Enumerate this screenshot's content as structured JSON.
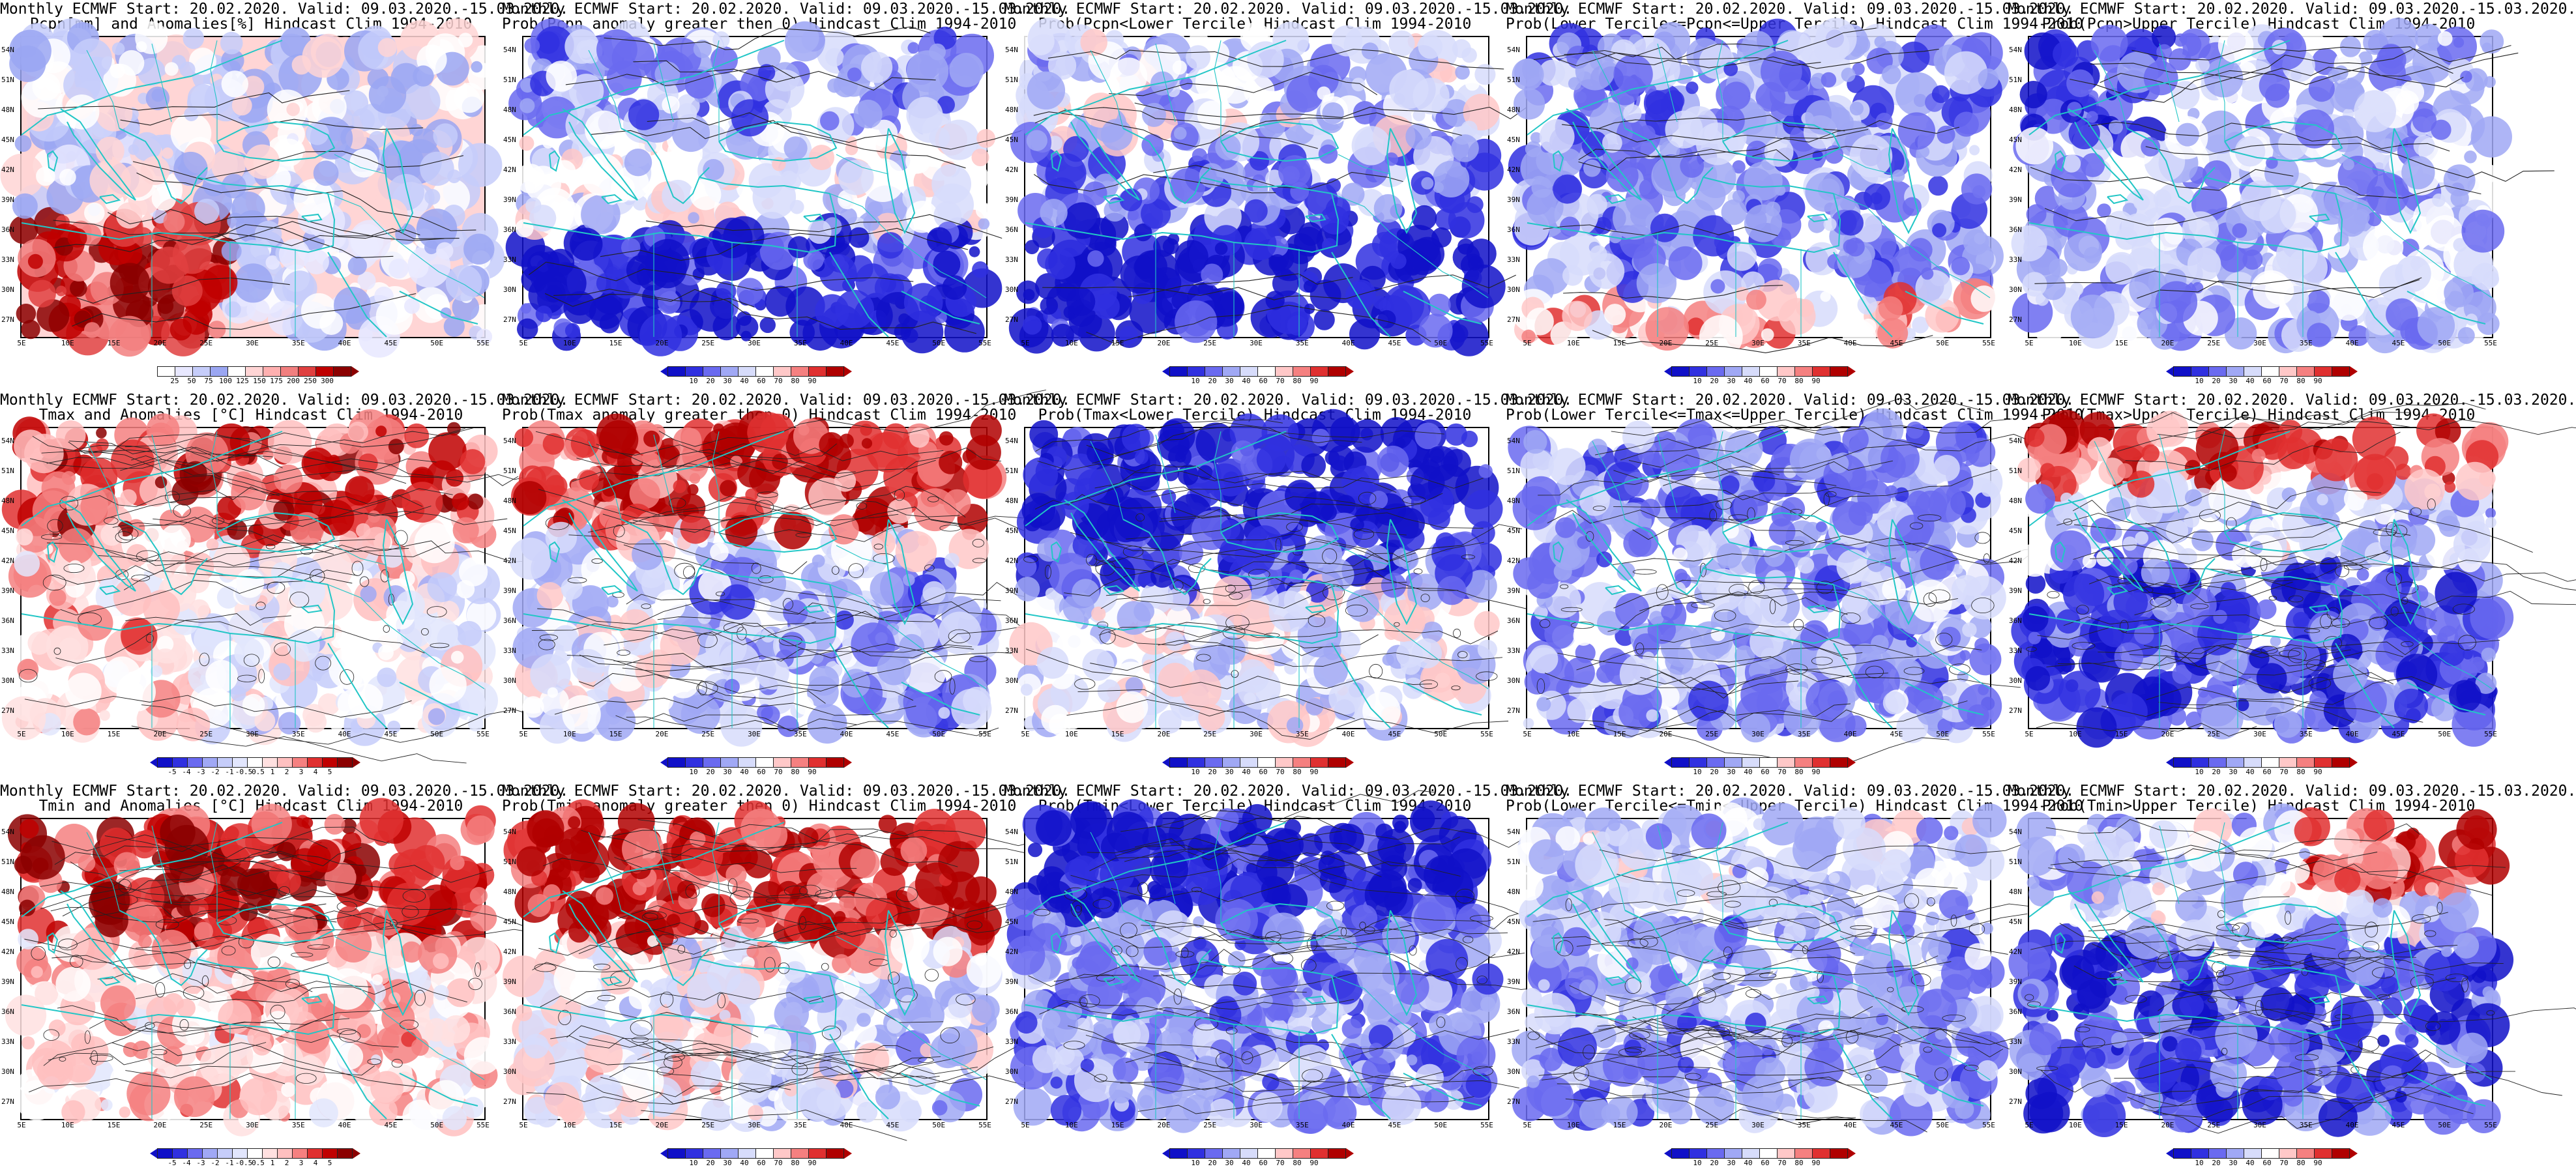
{
  "panels": [
    {
      "id": "pcpn-anom",
      "t1": "Monthly ECMWF Start: 20.02.2020. Valid: 09.03.2020.-15.03.2020.",
      "t2": "Pcpn[mm] and Anomalies[%] Hindcast Clim 1994-2010",
      "colorbar": {
        "labels": [
          "25",
          "50",
          "75",
          "100",
          "125",
          "150",
          "175",
          "200",
          "250",
          "300"
        ],
        "colors": [
          "#ffffff",
          "#e8e8ff",
          "#c6cdfa",
          "#9aa6f2",
          "#ffffff",
          "#ffd5d5",
          "#ffb0b0",
          "#f27f7f",
          "#e04040",
          "#c00000",
          "#8b0000"
        ]
      }
    },
    {
      "id": "prob-pcpn-gt0",
      "t1": "Monthly ECMWF Start: 20.02.2020. Valid: 09.03.2020.-15.03.2020.",
      "t2": "Prob(Pcpn anomaly greater then 0) Hindcast Clim 1994-2010",
      "colorbar": {
        "labels": [
          "10",
          "20",
          "30",
          "40",
          "60",
          "70",
          "80",
          "90"
        ],
        "colors": [
          "#1010c8",
          "#3030e0",
          "#6a6af0",
          "#a0a8f5",
          "#d7dcfb",
          "#ffffff",
          "#ffc8c8",
          "#f58080",
          "#e03030",
          "#b00000"
        ]
      }
    },
    {
      "id": "prob-pcpn-lt-lower",
      "t1": "Monthly ECMWF Start: 20.02.2020. Valid: 09.03.2020.-15.03.2020.",
      "t2": "Prob(Pcpn<Lower Tercile) Hindcast Clim 1994-2010",
      "colorbar": {
        "labels": [
          "10",
          "20",
          "30",
          "40",
          "60",
          "70",
          "80",
          "90"
        ],
        "colors": [
          "#1010c8",
          "#3030e0",
          "#6a6af0",
          "#a0a8f5",
          "#d7dcfb",
          "#ffffff",
          "#ffc8c8",
          "#f58080",
          "#e03030",
          "#b00000"
        ]
      }
    },
    {
      "id": "prob-pcpn-mid",
      "t1": "Monthly ECMWF Start: 20.02.2020. Valid: 09.03.2020.-15.03.2020.",
      "t2": "Prob(Lower Tercile<=Pcpn<=Upper Tercile) Hindcast Clim 1994-2010",
      "colorbar": {
        "labels": [
          "10",
          "20",
          "30",
          "40",
          "60",
          "70",
          "80",
          "90"
        ],
        "colors": [
          "#1010c8",
          "#3030e0",
          "#6a6af0",
          "#a0a8f5",
          "#d7dcfb",
          "#ffffff",
          "#ffc8c8",
          "#f58080",
          "#e03030",
          "#b00000"
        ]
      }
    },
    {
      "id": "prob-pcpn-gt-upper",
      "t1": "Monthly ECMWF Start: 20.02.2020. Valid: 09.03.2020.-15.03.2020.",
      "t2": "Prob(Pcpn>Upper Tercile) Hindcast Clim 1994-2010",
      "colorbar": {
        "labels": [
          "10",
          "20",
          "30",
          "40",
          "60",
          "70",
          "80",
          "90"
        ],
        "colors": [
          "#1010c8",
          "#3030e0",
          "#6a6af0",
          "#a0a8f5",
          "#d7dcfb",
          "#ffffff",
          "#ffc8c8",
          "#f58080",
          "#e03030",
          "#b00000"
        ]
      }
    },
    {
      "id": "tmax-anom",
      "t1": "Monthly ECMWF Start: 20.02.2020. Valid: 09.03.2020.-15.03.2020.",
      "t2": "Tmax and Anomalies [°C] Hindcast Clim 1994-2010",
      "colorbar": {
        "labels": [
          "-5",
          "-4",
          "-3",
          "-2",
          "-1",
          "-0.5",
          "0.5",
          "1",
          "2",
          "3",
          "4",
          "5"
        ],
        "colors": [
          "#1010c8",
          "#3030e0",
          "#6a6af0",
          "#a0a8f5",
          "#c6cdfa",
          "#e2e6fd",
          "#ffffff",
          "#ffe0e0",
          "#ffc0c0",
          "#f58080",
          "#e03030",
          "#c00000",
          "#8b0000"
        ]
      }
    },
    {
      "id": "prob-tmax-gt0",
      "t1": "Monthly ECMWF Start: 20.02.2020. Valid: 09.03.2020.-15.03.2020.",
      "t2": "Prob(Tmax anomaly greater then 0) Hindcast Clim 1994-2010",
      "colorbar": {
        "labels": [
          "10",
          "20",
          "30",
          "40",
          "60",
          "70",
          "80",
          "90"
        ],
        "colors": [
          "#1010c8",
          "#3030e0",
          "#6a6af0",
          "#a0a8f5",
          "#d7dcfb",
          "#ffffff",
          "#ffc8c8",
          "#f58080",
          "#e03030",
          "#b00000"
        ]
      }
    },
    {
      "id": "prob-tmax-lt-lower",
      "t1": "Monthly ECMWF Start: 20.02.2020. Valid: 09.03.2020.-15.03.2020.",
      "t2": "Prob(Tmax<Lower Tercile) Hindcast Clim 1994-2010",
      "colorbar": {
        "labels": [
          "10",
          "20",
          "30",
          "40",
          "60",
          "70",
          "80",
          "90"
        ],
        "colors": [
          "#1010c8",
          "#3030e0",
          "#6a6af0",
          "#a0a8f5",
          "#d7dcfb",
          "#ffffff",
          "#ffc8c8",
          "#f58080",
          "#e03030",
          "#b00000"
        ]
      }
    },
    {
      "id": "prob-tmax-mid",
      "t1": "Monthly ECMWF Start: 20.02.2020. Valid: 09.03.2020.-15.03.2020.",
      "t2": "Prob(Lower Tercile<=Tmax<=Upper Tercile) Hindcast Clim 1994-2010",
      "colorbar": {
        "labels": [
          "10",
          "20",
          "30",
          "40",
          "60",
          "70",
          "80",
          "90"
        ],
        "colors": [
          "#1010c8",
          "#3030e0",
          "#6a6af0",
          "#a0a8f5",
          "#d7dcfb",
          "#ffffff",
          "#ffc8c8",
          "#f58080",
          "#e03030",
          "#b00000"
        ]
      }
    },
    {
      "id": "prob-tmax-gt-upper",
      "t1": "Monthly ECMWF Start: 20.02.2020. Valid: 09.03.2020.-15.03.2020.",
      "t2": "Prob(Tmax>Upper Tercile) Hindcast Clim 1994-2010",
      "colorbar": {
        "labels": [
          "10",
          "20",
          "30",
          "40",
          "60",
          "70",
          "80",
          "90"
        ],
        "colors": [
          "#1010c8",
          "#3030e0",
          "#6a6af0",
          "#a0a8f5",
          "#d7dcfb",
          "#ffffff",
          "#ffc8c8",
          "#f58080",
          "#e03030",
          "#b00000"
        ]
      }
    },
    {
      "id": "tmin-anom",
      "t1": "Monthly ECMWF Start: 20.02.2020. Valid: 09.03.2020.-15.03.2020.",
      "t2": "Tmin and Anomalies [°C] Hindcast Clim 1994-2010",
      "colorbar": {
        "labels": [
          "-5",
          "-4",
          "-3",
          "-2",
          "-1",
          "-0.5",
          "0.5",
          "1",
          "2",
          "3",
          "4",
          "5"
        ],
        "colors": [
          "#1010c8",
          "#3030e0",
          "#6a6af0",
          "#a0a8f5",
          "#c6cdfa",
          "#e2e6fd",
          "#ffffff",
          "#ffe0e0",
          "#ffc0c0",
          "#f58080",
          "#e03030",
          "#c00000",
          "#8b0000"
        ]
      }
    },
    {
      "id": "prob-tmin-gt0",
      "t1": "Monthly ECMWF Start: 20.02.2020. Valid: 09.03.2020.-15.03.2020.",
      "t2": "Prob(Tmin anomaly greater then 0) Hindcast Clim 1994-2010",
      "colorbar": {
        "labels": [
          "10",
          "20",
          "30",
          "40",
          "60",
          "70",
          "80",
          "90"
        ],
        "colors": [
          "#1010c8",
          "#3030e0",
          "#6a6af0",
          "#a0a8f5",
          "#d7dcfb",
          "#ffffff",
          "#ffc8c8",
          "#f58080",
          "#e03030",
          "#b00000"
        ]
      }
    },
    {
      "id": "prob-tmin-lt-lower",
      "t1": "Monthly ECMWF Start: 20.02.2020. Valid: 09.03.2020.-15.03.2020.",
      "t2": "Prob(Tmin<Lower Tercile) Hindcast Clim 1994-2010",
      "colorbar": {
        "labels": [
          "10",
          "20",
          "30",
          "40",
          "60",
          "70",
          "80",
          "90"
        ],
        "colors": [
          "#1010c8",
          "#3030e0",
          "#6a6af0",
          "#a0a8f5",
          "#d7dcfb",
          "#ffffff",
          "#ffc8c8",
          "#f58080",
          "#e03030",
          "#b00000"
        ]
      }
    },
    {
      "id": "prob-tmin-mid",
      "t1": "Monthly ECMWF Start: 20.02.2020. Valid: 09.03.2020.-15.03.2020.",
      "t2": "Prob(Lower Tercile<=Tmin<=Upper Tercile) Hindcast Clim 1994-2010",
      "colorbar": {
        "labels": [
          "10",
          "20",
          "30",
          "40",
          "60",
          "70",
          "80",
          "90"
        ],
        "colors": [
          "#1010c8",
          "#3030e0",
          "#6a6af0",
          "#a0a8f5",
          "#d7dcfb",
          "#ffffff",
          "#ffc8c8",
          "#f58080",
          "#e03030",
          "#b00000"
        ]
      }
    },
    {
      "id": "prob-tmin-gt-upper",
      "t1": "Monthly ECMWF Start: 20.02.2020. Valid: 09.03.2020.-15.03.2020.",
      "t2": "Prob(Tmin>Upper Tercile) Hindcast Clim 1994-2010",
      "colorbar": {
        "labels": [
          "10",
          "20",
          "30",
          "40",
          "60",
          "70",
          "80",
          "90"
        ],
        "colors": [
          "#1010c8",
          "#3030e0",
          "#6a6af0",
          "#a0a8f5",
          "#d7dcfb",
          "#ffffff",
          "#ffc8c8",
          "#f58080",
          "#e03030",
          "#b00000"
        ]
      }
    }
  ],
  "lat_labels": [
    "54N",
    "51N",
    "48N",
    "45N",
    "42N",
    "39N",
    "36N",
    "33N",
    "30N",
    "27N"
  ],
  "lon_labels": [
    "5E",
    "10E",
    "15E",
    "20E",
    "25E",
    "30E",
    "35E",
    "40E",
    "45E",
    "50E",
    "55E"
  ],
  "palette": {
    "coast": "#22c6c6",
    "contour": "#222222",
    "frame": "#000000"
  }
}
